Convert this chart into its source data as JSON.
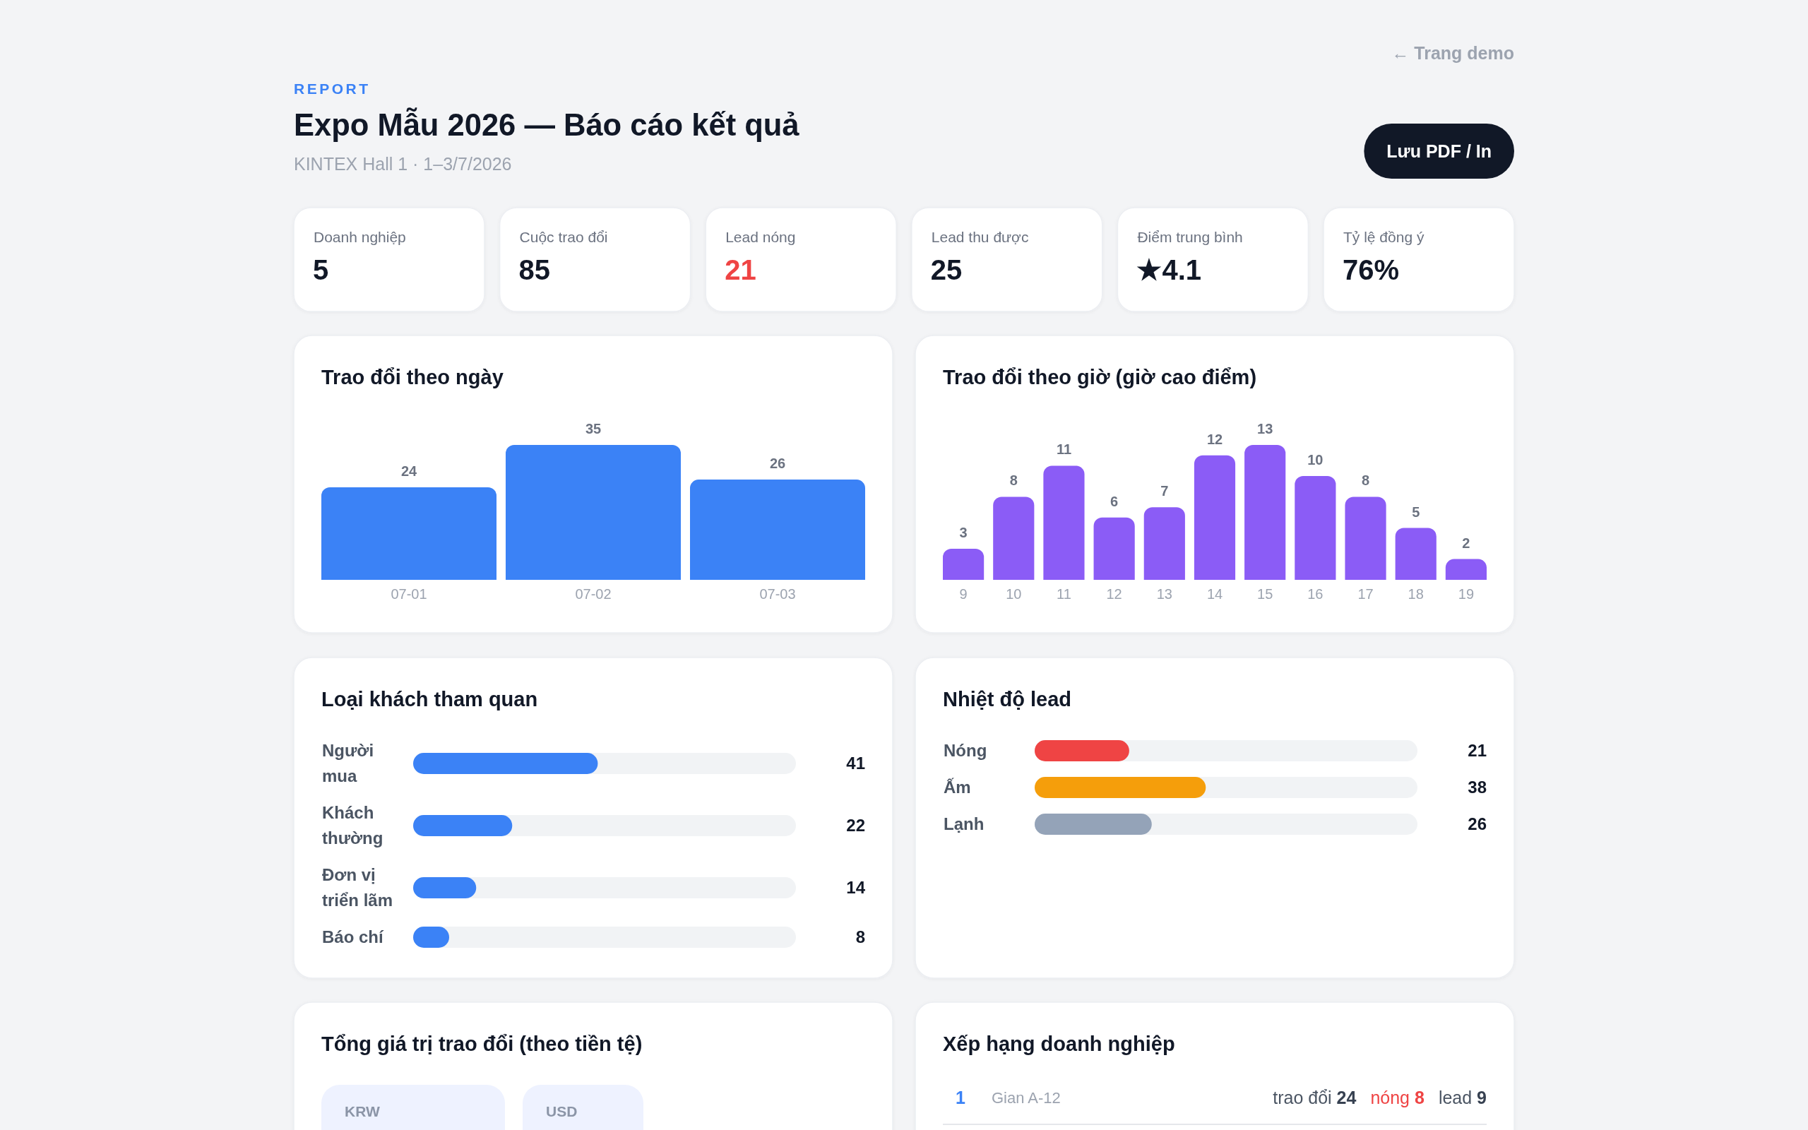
{
  "chart_data": [
    {
      "type": "other",
      "title": "Expo Mẫu 2026 — Báo cáo kết quả",
      "subtitle": "KINTEX Hall 1 · 1–3/7/2026",
      "annotations": [
        "REPORT",
        "← Trang demo",
        "Lưu PDF / In"
      ],
      "categories": [
        "Doanh nghiệp",
        "Cuộc trao đổi",
        "Lead nóng",
        "Lead thu được",
        "Điểm trung bình",
        "Tỷ lệ đồng ý"
      ],
      "value_labels": [
        "5",
        "85",
        "21",
        "25",
        "★4.1",
        "76%"
      ]
    },
    {
      "type": "bar",
      "title": "Trao đổi theo ngày",
      "categories": [
        "07-01",
        "07-02",
        "07-03"
      ],
      "values": [
        24,
        35,
        26
      ],
      "color": "#3b82f6",
      "ylim": [
        0,
        35
      ],
      "data_labels": true,
      "tick_labels": "x"
    },
    {
      "type": "bar",
      "title": "Trao đổi theo giờ (giờ cao điểm)",
      "categories": [
        "9",
        "10",
        "11",
        "12",
        "13",
        "14",
        "15",
        "16",
        "17",
        "18",
        "19"
      ],
      "values": [
        3,
        8,
        11,
        6,
        7,
        12,
        13,
        10,
        8,
        5,
        2
      ],
      "color": "#8b5cf6",
      "ylim": [
        0,
        13
      ],
      "data_labels": true,
      "tick_labels": "x"
    },
    {
      "type": "bar",
      "orientation": "horizontal",
      "title": "Loại khách tham quan",
      "categories": [
        "Người mua",
        "Khách thường",
        "Đơn vị triển lãm",
        "Báo chí"
      ],
      "values": [
        41,
        22,
        14,
        8
      ],
      "color": "#3b82f6",
      "xlim": [
        0,
        85
      ],
      "data_labels": true,
      "tick_labels": "y"
    },
    {
      "type": "bar",
      "orientation": "horizontal",
      "title": "Nhiệt độ lead",
      "categories": [
        "Nóng",
        "Ấm",
        "Lạnh"
      ],
      "values": [
        21,
        38,
        26
      ],
      "colors": [
        "#ef4444",
        "#f59e0b",
        "#94a3b8"
      ],
      "xlim": [
        0,
        85
      ],
      "data_labels": true,
      "tick_labels": "y"
    },
    {
      "type": "other",
      "title": "Tổng giá trị trao đổi (theo tiền tệ)",
      "categories": [
        "KRW",
        "USD"
      ]
    },
    {
      "type": "other",
      "title": "Xếp hạng doanh nghiệp",
      "annotations": [
        "1",
        "Gian A-12"
      ],
      "categories": [
        "trao đổi",
        "nóng",
        "lead"
      ],
      "value_labels": [
        "24",
        "8",
        "9"
      ]
    }
  ]
}
